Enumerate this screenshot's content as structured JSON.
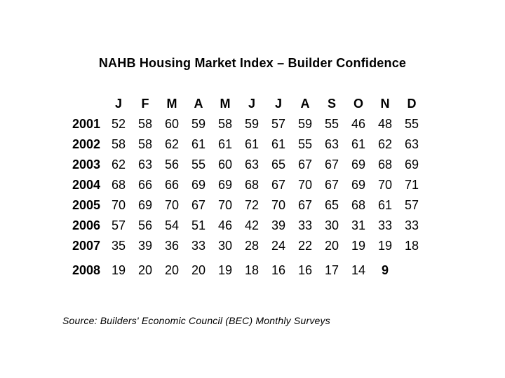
{
  "slide": {
    "title": "NAHB Housing Market Index – Builder Confidence",
    "source_note": "Source: Builders' Economic Council (BEC) Monthly Surveys",
    "text_color": "#000000",
    "background_color": "#ffffff"
  },
  "chart_data": {
    "type": "table",
    "title": "NAHB Housing Market Index – Builder Confidence",
    "columns": [
      "J",
      "F",
      "M",
      "A",
      "M",
      "J",
      "J",
      "A",
      "S",
      "O",
      "N",
      "D"
    ],
    "rows": [
      {
        "year": "2001",
        "values": [
          52,
          58,
          60,
          59,
          58,
          59,
          57,
          59,
          55,
          46,
          48,
          55
        ]
      },
      {
        "year": "2002",
        "values": [
          58,
          58,
          62,
          61,
          61,
          61,
          61,
          55,
          63,
          61,
          62,
          63
        ]
      },
      {
        "year": "2003",
        "values": [
          62,
          63,
          56,
          55,
          60,
          63,
          65,
          67,
          67,
          69,
          68,
          69
        ]
      },
      {
        "year": "2004",
        "values": [
          68,
          66,
          66,
          69,
          69,
          68,
          67,
          70,
          67,
          69,
          70,
          71
        ]
      },
      {
        "year": "2005",
        "values": [
          70,
          69,
          70,
          67,
          70,
          72,
          70,
          67,
          65,
          68,
          61,
          57
        ]
      },
      {
        "year": "2006",
        "values": [
          57,
          56,
          54,
          51,
          46,
          42,
          39,
          33,
          30,
          31,
          33,
          33
        ]
      },
      {
        "year": "2007",
        "values": [
          35,
          39,
          36,
          33,
          30,
          28,
          24,
          22,
          20,
          19,
          19,
          18
        ]
      },
      {
        "year": "2008",
        "values": [
          19,
          20,
          20,
          20,
          19,
          18,
          16,
          16,
          17,
          14,
          9,
          null
        ],
        "bold_value_indices": [
          10
        ],
        "extra_gap_before": true
      }
    ],
    "value_range": [
      9,
      72
    ],
    "notes": "2008 December value not shown; 2008 November value (9) rendered bold"
  }
}
